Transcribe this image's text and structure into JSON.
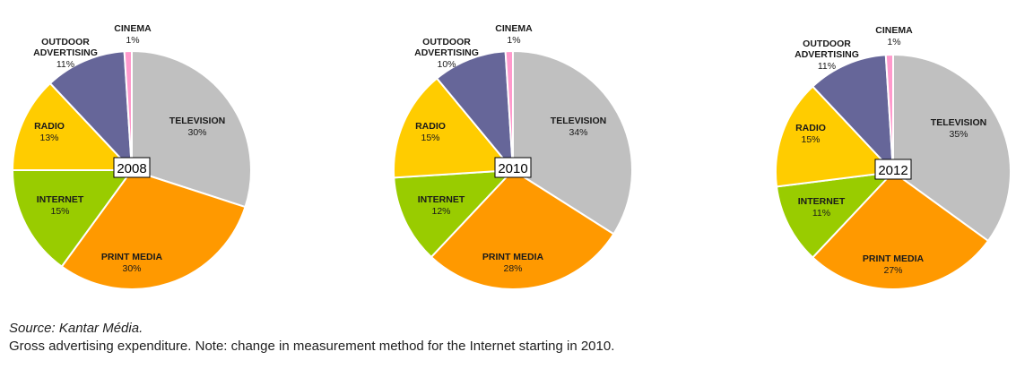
{
  "chart_data": [
    {
      "type": "pie",
      "title": "2008",
      "slices": [
        {
          "label": "TELEVISION",
          "value": 30,
          "color": "#c0c0c0"
        },
        {
          "label": "PRINT MEDIA",
          "value": 30,
          "color": "#ff9900"
        },
        {
          "label": "INTERNET",
          "value": 15,
          "color": "#99cc00"
        },
        {
          "label": "RADIO",
          "value": 13,
          "color": "#ffcc00"
        },
        {
          "label": "OUTDOOR ADVERTISING",
          "label_lines": [
            "OUTDOOR",
            "ADVERTISING"
          ],
          "value": 11,
          "color": "#666699"
        },
        {
          "label": "CINEMA",
          "value": 1,
          "color": "#ff99cc"
        }
      ]
    },
    {
      "type": "pie",
      "title": "2010",
      "slices": [
        {
          "label": "TELEVISION",
          "value": 34,
          "color": "#c0c0c0"
        },
        {
          "label": "PRINT MEDIA",
          "value": 28,
          "color": "#ff9900"
        },
        {
          "label": "INTERNET",
          "value": 12,
          "color": "#99cc00"
        },
        {
          "label": "RADIO",
          "value": 15,
          "color": "#ffcc00"
        },
        {
          "label": "OUTDOOR ADVERTISING",
          "label_lines": [
            "OUTDOOR",
            "ADVERTISING"
          ],
          "value": 10,
          "color": "#666699"
        },
        {
          "label": "CINEMA",
          "value": 1,
          "color": "#ff99cc"
        }
      ]
    },
    {
      "type": "pie",
      "title": "2012",
      "slices": [
        {
          "label": "TELEVISION",
          "value": 35,
          "color": "#c0c0c0"
        },
        {
          "label": "PRINT MEDIA",
          "value": 27,
          "color": "#ff9900"
        },
        {
          "label": "INTERNET",
          "value": 11,
          "color": "#99cc00"
        },
        {
          "label": "RADIO",
          "value": 15,
          "color": "#ffcc00"
        },
        {
          "label": "OUTDOOR ADVERTISING",
          "label_lines": [
            "OUTDOOR",
            "ADVERTISING"
          ],
          "value": 11,
          "color": "#666699"
        },
        {
          "label": "CINEMA",
          "value": 1,
          "color": "#ff99cc"
        }
      ]
    }
  ],
  "notes": {
    "source": "Source: Kantar Média.",
    "footnote": "Gross advertising expenditure.  Note: change in measurement method for the Internet starting in 2010."
  }
}
